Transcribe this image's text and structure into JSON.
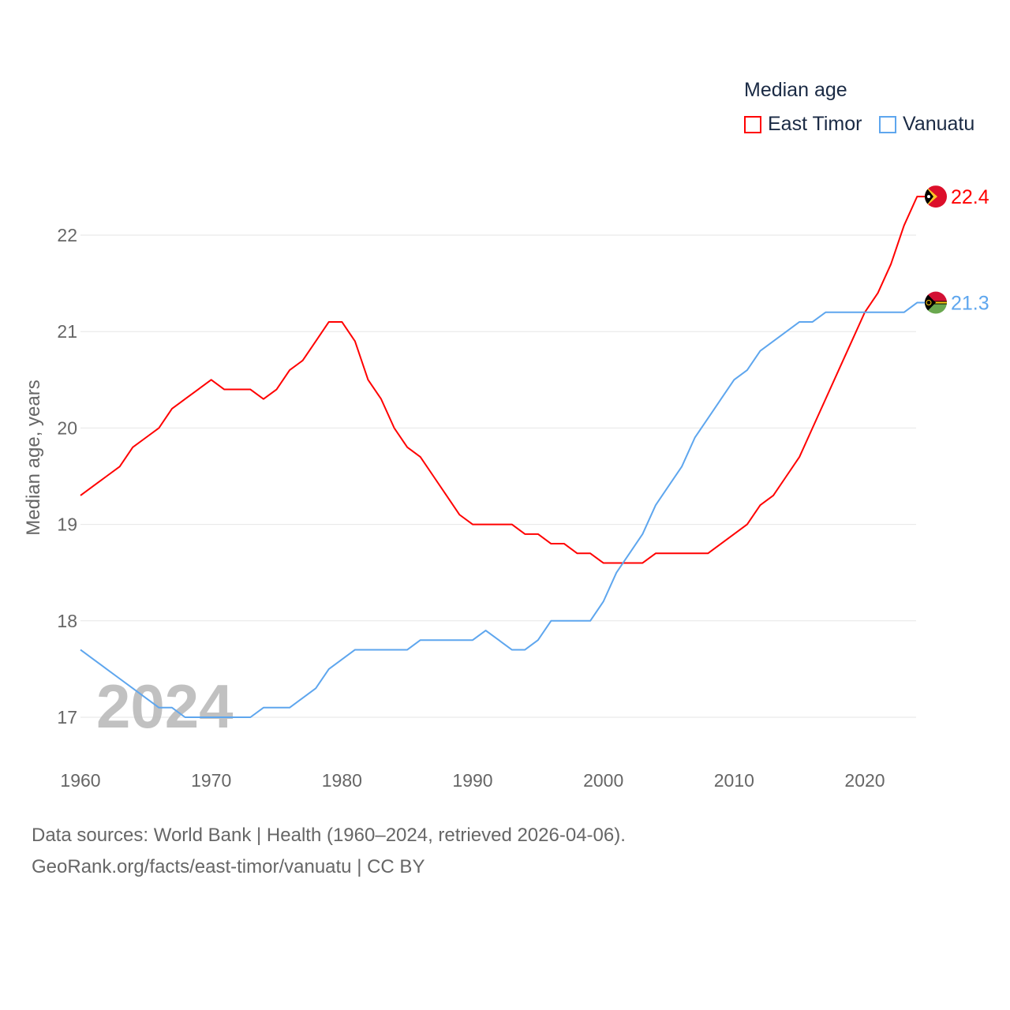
{
  "chart_data": {
    "type": "line",
    "title": "Median age",
    "xlabel": "",
    "ylabel": "Median age, years",
    "xlim": [
      1960,
      2024
    ],
    "ylim": [
      16.5,
      22.6
    ],
    "x_ticks": [
      1960,
      1970,
      1980,
      1990,
      2000,
      2010,
      2020
    ],
    "y_ticks": [
      17,
      18,
      19,
      20,
      21,
      22
    ],
    "grid": true,
    "legend_placement": "top-right",
    "year_watermark": "2024",
    "x": [
      1960,
      1961,
      1962,
      1963,
      1964,
      1965,
      1966,
      1967,
      1968,
      1969,
      1970,
      1971,
      1972,
      1973,
      1974,
      1975,
      1976,
      1977,
      1978,
      1979,
      1980,
      1981,
      1982,
      1983,
      1984,
      1985,
      1986,
      1987,
      1988,
      1989,
      1990,
      1991,
      1992,
      1993,
      1994,
      1995,
      1996,
      1997,
      1998,
      1999,
      2000,
      2001,
      2002,
      2003,
      2004,
      2005,
      2006,
      2007,
      2008,
      2009,
      2010,
      2011,
      2012,
      2013,
      2014,
      2015,
      2016,
      2017,
      2018,
      2019,
      2020,
      2021,
      2022,
      2023,
      2024
    ],
    "series": [
      {
        "name": "East Timor",
        "color": "#ff0000",
        "end_label": "22.4",
        "values": [
          19.3,
          19.4,
          19.5,
          19.6,
          19.8,
          19.9,
          20.0,
          20.2,
          20.3,
          20.4,
          20.5,
          20.4,
          20.4,
          20.4,
          20.3,
          20.4,
          20.6,
          20.7,
          20.9,
          21.1,
          21.1,
          20.9,
          20.5,
          20.3,
          20.0,
          19.8,
          19.7,
          19.5,
          19.3,
          19.1,
          19.0,
          19.0,
          19.0,
          19.0,
          18.9,
          18.9,
          18.8,
          18.8,
          18.7,
          18.7,
          18.6,
          18.6,
          18.6,
          18.6,
          18.7,
          18.7,
          18.7,
          18.7,
          18.7,
          18.8,
          18.9,
          19.0,
          19.2,
          19.3,
          19.5,
          19.7,
          20.0,
          20.3,
          20.6,
          20.9,
          21.2,
          21.4,
          21.7,
          22.1,
          22.4
        ]
      },
      {
        "name": "Vanuatu",
        "color": "#5ea6ee",
        "end_label": "21.3",
        "values": [
          17.7,
          17.6,
          17.5,
          17.4,
          17.3,
          17.2,
          17.1,
          17.1,
          17.0,
          17.0,
          17.0,
          17.0,
          17.0,
          17.0,
          17.1,
          17.1,
          17.1,
          17.2,
          17.3,
          17.5,
          17.6,
          17.7,
          17.7,
          17.7,
          17.7,
          17.7,
          17.8,
          17.8,
          17.8,
          17.8,
          17.8,
          17.9,
          17.8,
          17.7,
          17.7,
          17.8,
          18.0,
          18.0,
          18.0,
          18.0,
          18.2,
          18.5,
          18.7,
          18.9,
          19.2,
          19.4,
          19.6,
          19.9,
          20.1,
          20.3,
          20.5,
          20.6,
          20.8,
          20.9,
          21.0,
          21.1,
          21.1,
          21.2,
          21.2,
          21.2,
          21.2,
          21.2,
          21.2,
          21.2,
          21.3
        ]
      }
    ]
  },
  "legend": {
    "title": "Median age",
    "items": [
      "East Timor",
      "Vanuatu"
    ]
  },
  "footer": {
    "line1": "Data sources: World Bank | Health (1960–2024, retrieved 2026-04-06).",
    "line2": "GeoRank.org/facts/east-timor/vanuatu | CC BY"
  }
}
